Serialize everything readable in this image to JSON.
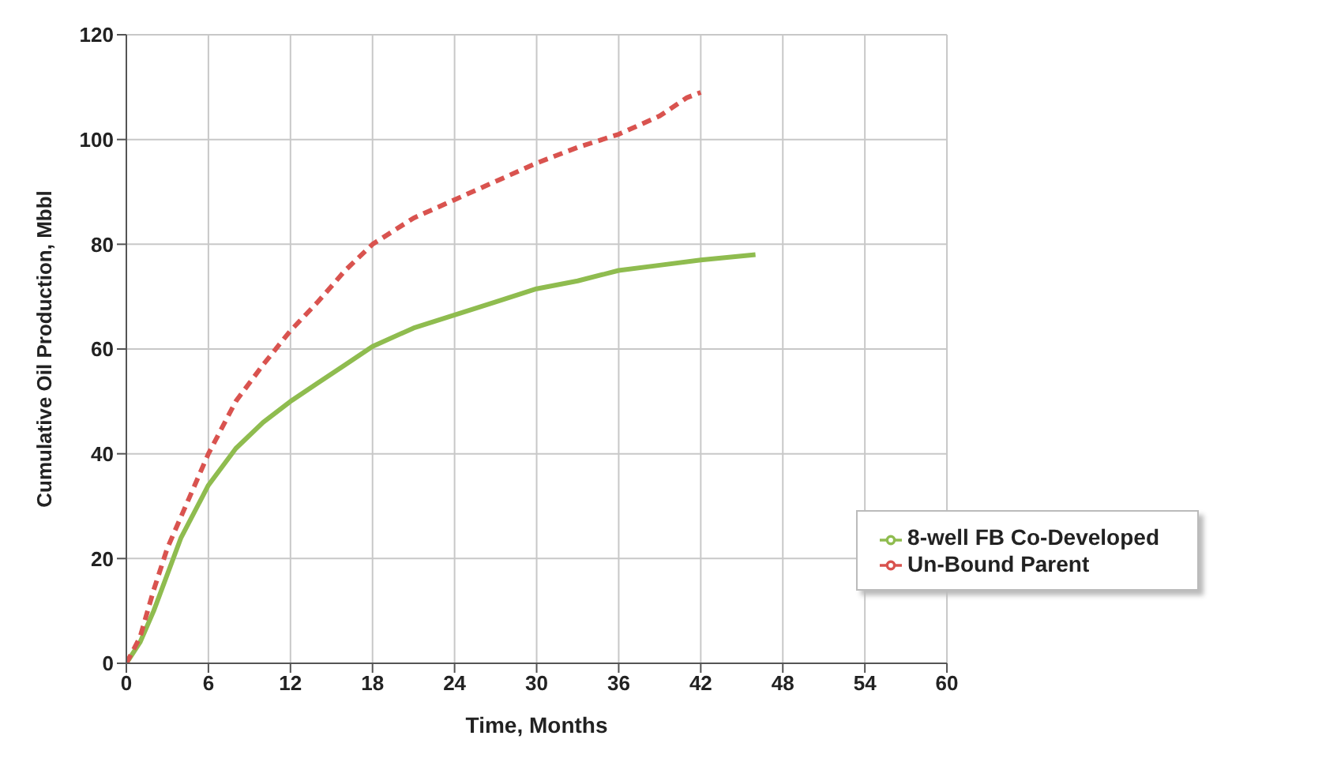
{
  "chart_data": {
    "type": "line",
    "xlabel": "Time, Months",
    "ylabel": "Cumulative Oil Production, Mbbl",
    "xlim": [
      0,
      60
    ],
    "xticks": [
      0,
      6,
      12,
      18,
      24,
      30,
      36,
      42,
      48,
      54,
      60
    ],
    "ylim": [
      0,
      120
    ],
    "yticks": [
      0,
      20,
      40,
      60,
      80,
      100,
      120
    ],
    "grid": true,
    "legend": "bottom right",
    "marker": "none",
    "series": [
      {
        "name": "8-well FB Co-Developed",
        "color": "#8fbc4f",
        "line_style": "solid",
        "x": [
          0,
          1,
          2,
          4,
          6,
          8,
          10,
          12,
          14,
          16,
          18,
          21,
          24,
          27,
          30,
          33,
          36,
          39,
          42,
          46
        ],
        "values": [
          0,
          4,
          10,
          24,
          34,
          41,
          46,
          50,
          53.5,
          57,
          60.5,
          64,
          66.5,
          69,
          71.5,
          73,
          75,
          76,
          77,
          78
        ]
      },
      {
        "name": "Un-Bound Parent",
        "color": "#d9534f",
        "line_style": "dashed",
        "x": [
          0,
          1,
          2,
          3,
          4,
          6,
          8,
          10,
          12,
          14,
          16,
          18,
          21,
          24,
          27,
          30,
          33,
          36,
          39,
          41,
          42
        ],
        "values": [
          0,
          5,
          14,
          22,
          28,
          40,
          50,
          57,
          63.5,
          69,
          75,
          80,
          85,
          88.5,
          92,
          95.5,
          98.5,
          101,
          104.5,
          108,
          109
        ]
      }
    ]
  }
}
